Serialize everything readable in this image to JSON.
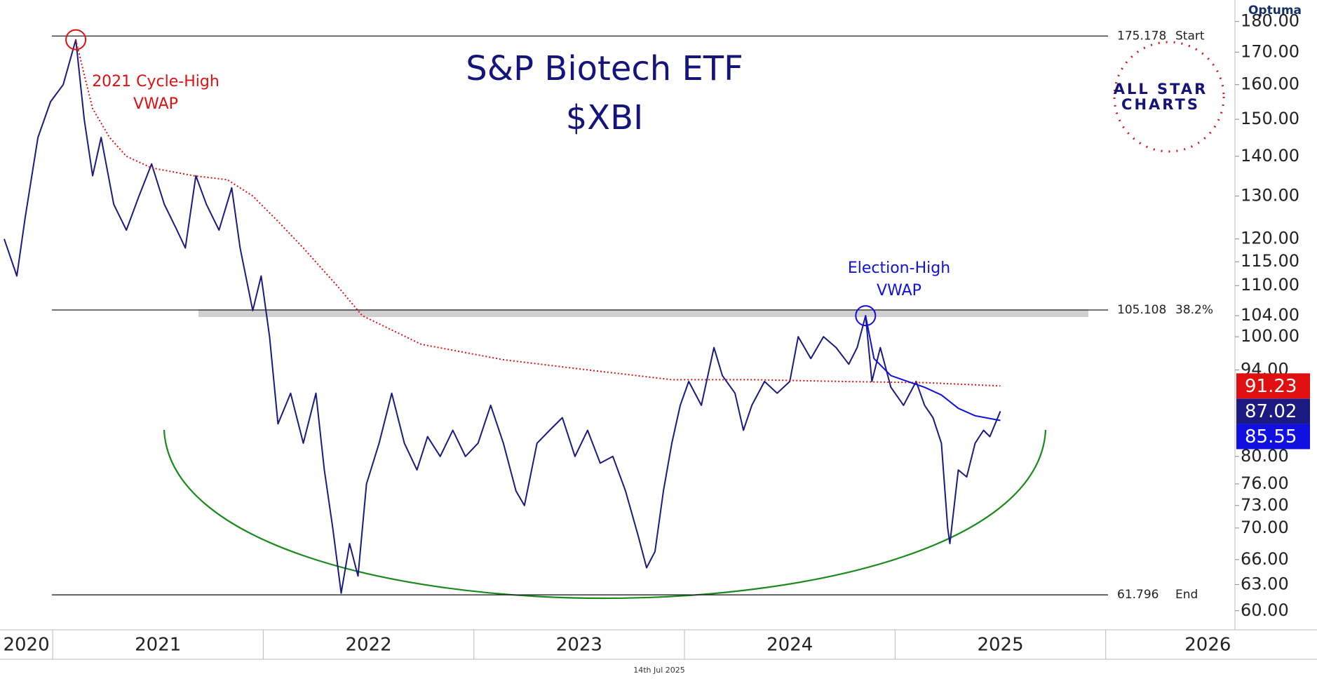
{
  "chart_data": {
    "type": "line",
    "title": "S&P Biotech ETF",
    "subtitle": "$XBI",
    "log_y": true,
    "ylim": [
      57.9,
      183
    ],
    "yticks": [
      {
        "value": 60,
        "label": "60.00"
      },
      {
        "value": 63,
        "label": "63.00"
      },
      {
        "value": 66,
        "label": "66.00"
      },
      {
        "value": 70,
        "label": "70.00"
      },
      {
        "value": 73,
        "label": "73.00"
      },
      {
        "value": 76,
        "label": "76.00"
      },
      {
        "value": 80,
        "label": "80.00"
      },
      {
        "value": 94,
        "label": "94.00"
      },
      {
        "value": 100,
        "label": "100.00"
      },
      {
        "value": 104,
        "label": "104.00"
      },
      {
        "value": 110,
        "label": "110.00"
      },
      {
        "value": 115,
        "label": "115.00"
      },
      {
        "value": 120,
        "label": "120.00"
      },
      {
        "value": 130,
        "label": "130.00"
      },
      {
        "value": 140,
        "label": "140.00"
      },
      {
        "value": 150,
        "label": "150.00"
      },
      {
        "value": 160,
        "label": "160.00"
      },
      {
        "value": 170,
        "label": "170.00"
      },
      {
        "value": 180,
        "label": "180.00"
      }
    ],
    "xlim": [
      2020.75,
      2026.97
    ],
    "xticks": [
      2020,
      2021,
      2022,
      2023,
      2024,
      2025,
      2026
    ],
    "series": [
      {
        "color": "#1a1a80",
        "style": "solid",
        "x": [
          2020.77,
          2020.83,
          2020.87,
          2020.93,
          2020.99,
          2021.05,
          2021.11,
          2021.15,
          2021.19,
          2021.23,
          2021.29,
          2021.35,
          2021.41,
          2021.47,
          2021.53,
          2021.59,
          2021.63,
          2021.68,
          2021.73,
          2021.79,
          2021.85,
          2021.89,
          2021.95,
          2021.99,
          2022.03,
          2022.07,
          2022.13,
          2022.19,
          2022.25,
          2022.29,
          2022.33,
          2022.37,
          2022.41,
          2022.45,
          2022.49,
          2022.55,
          2022.61,
          2022.67,
          2022.73,
          2022.78,
          2022.84,
          2022.9,
          2022.96,
          2023.02,
          2023.08,
          2023.14,
          2023.2,
          2023.24,
          2023.3,
          2023.36,
          2023.42,
          2023.48,
          2023.54,
          2023.6,
          2023.66,
          2023.72,
          2023.78,
          2023.82,
          2023.86,
          2023.9,
          2023.94,
          2023.98,
          2024.02,
          2024.08,
          2024.14,
          2024.18,
          2024.24,
          2024.28,
          2024.32,
          2024.38,
          2024.44,
          2024.5,
          2024.54,
          2024.6,
          2024.66,
          2024.72,
          2024.78,
          2024.82,
          2024.86,
          2024.89,
          2024.93,
          2024.98,
          2025.04,
          2025.1,
          2025.14,
          2025.18,
          2025.22,
          2025.25,
          2025.26,
          2025.3,
          2025.34,
          2025.38,
          2025.42,
          2025.45,
          2025.5
        ],
        "values": [
          120,
          112,
          125,
          145,
          155,
          160,
          174,
          150,
          135,
          145,
          128,
          122,
          130,
          138,
          128,
          122,
          118,
          135,
          128,
          122,
          132,
          118,
          105,
          112,
          100,
          85,
          90,
          82,
          90,
          78,
          70,
          62,
          68,
          64,
          76,
          82,
          90,
          82,
          78,
          83,
          80,
          84,
          80,
          82,
          88,
          82,
          75,
          73,
          82,
          84,
          86,
          80,
          84,
          79,
          80,
          75,
          69,
          65,
          67,
          75,
          82,
          88,
          92,
          88,
          98,
          93,
          90,
          84,
          88,
          92,
          90,
          92,
          100,
          96,
          100,
          98,
          95,
          98,
          104,
          92,
          98,
          91,
          88,
          92,
          88,
          86,
          82,
          70,
          68,
          78,
          77,
          82,
          84,
          83,
          87.02
        ]
      },
      {
        "color": "#e01010",
        "style": "dotted",
        "x": [
          2021.11,
          2021.15,
          2021.19,
          2021.27,
          2021.35,
          2021.47,
          2021.67,
          2021.83,
          2021.95,
          2022.07,
          2022.19,
          2022.35,
          2022.47,
          2022.75,
          2023.14,
          2023.54,
          2023.94,
          2024.34,
          2024.74,
          2025.14,
          2025.5
        ],
        "values": [
          174,
          163,
          153,
          145,
          140,
          137,
          135,
          134,
          130,
          124,
          118,
          110,
          104,
          98.6,
          95.8,
          94,
          92.3,
          92.3,
          92,
          91.8,
          91.23
        ]
      },
      {
        "color": "#1010e0",
        "style": "solid",
        "x": [
          2024.86,
          2024.9,
          2024.98,
          2025.06,
          2025.14,
          2025.22,
          2025.3,
          2025.38,
          2025.5
        ],
        "values": [
          104,
          96,
          93,
          92,
          91,
          89.7,
          87.5,
          86.3,
          85.55
        ]
      }
    ],
    "levels": [
      {
        "value": 175.178,
        "label": "Start"
      },
      {
        "value": 105.108,
        "label": "38.2%"
      },
      {
        "value": 61.796,
        "label": "End"
      }
    ],
    "annotations": [
      [
        "2021 Cycle-High",
        "VWAP"
      ],
      [
        "Election-High",
        "VWAP"
      ]
    ],
    "footer": "14th Jul 2025",
    "logos": [
      "Optuma",
      "ALL STAR",
      "CHARTS"
    ]
  }
}
